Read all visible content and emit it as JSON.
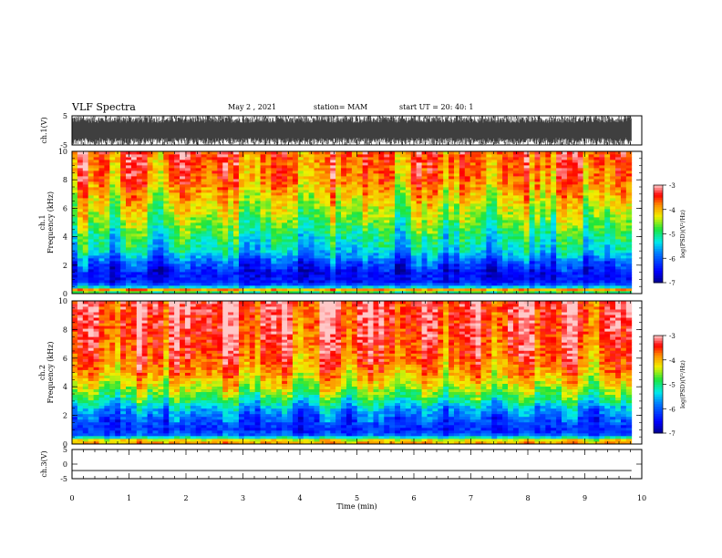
{
  "header": {
    "title": "VLF Spectra",
    "date": "May 2 , 2021",
    "station": "station= MAM",
    "start": "start UT = 20: 40: 1"
  },
  "chart_data": {
    "type": "heatmap",
    "x": {
      "label": "Time (min)",
      "range": [
        0,
        10
      ],
      "ticks": [
        "0",
        "1",
        "2",
        "3",
        "4",
        "5",
        "6",
        "7",
        "8",
        "9",
        "10"
      ]
    },
    "panels": [
      {
        "key": "waveform-ch1",
        "type": "line",
        "ylabel": "ch.1(V)",
        "ylim": [
          -5,
          5
        ],
        "yticks": [
          "5",
          "-5"
        ],
        "note": "dense noisy waveform saturating near +/-5 V",
        "data_end_min": 9.82
      },
      {
        "key": "spectrogram-ch1",
        "type": "heatmap",
        "ylabel_line1": "ch.1",
        "ylabel_line2": "Frequency (kHz)",
        "ylim": [
          0,
          10
        ],
        "yticks": [
          "0",
          "2",
          "4",
          "6",
          "8",
          "10"
        ],
        "data_end_min": 9.82,
        "profile_freq_khz": [
          0,
          0.3,
          0.5,
          0.8,
          1.5,
          2.2,
          3.0,
          4.0,
          5.0,
          6.0,
          7.0,
          8.0,
          10.0
        ],
        "profile_log_psd": [
          -5.3,
          -3.9,
          -5.6,
          -6.4,
          -6.5,
          -6.1,
          -5.4,
          -5.1,
          -4.7,
          -4.4,
          -4.1,
          -3.8,
          -3.6
        ],
        "colorbar": {
          "label": "log(PSD)(V²/Hz)",
          "range": [
            -7,
            -3
          ],
          "ticks": [
            "-3",
            "-4",
            "-5",
            "-6",
            "-7"
          ]
        }
      },
      {
        "key": "spectrogram-ch2",
        "type": "heatmap",
        "ylabel_line1": "ch.2",
        "ylabel_line2": "Frequency (kHz)",
        "ylim": [
          0,
          10
        ],
        "yticks": [
          "0",
          "2",
          "4",
          "6",
          "8",
          "10"
        ],
        "data_end_min": 9.82,
        "profile_freq_khz": [
          0,
          0.3,
          0.6,
          1.0,
          1.8,
          2.5,
          3.2,
          4.0,
          5.0,
          6.0,
          7.0,
          8.0,
          10.0
        ],
        "profile_log_psd": [
          -3.8,
          -4.3,
          -5.9,
          -6.3,
          -6.0,
          -5.6,
          -4.9,
          -4.4,
          -3.9,
          -3.6,
          -3.5,
          -3.4,
          -3.3
        ],
        "colorbar": {
          "label": "log(PSD)(V²/Hz)",
          "range": [
            -7,
            -3
          ],
          "ticks": [
            "-3",
            "-4",
            "-5",
            "-6",
            "-7"
          ]
        }
      },
      {
        "key": "waveform-ch3",
        "type": "line",
        "ylabel": "ch.3(V)",
        "ylim": [
          -5,
          5
        ],
        "yticks": [
          "5",
          "0",
          "-5"
        ],
        "constant_value": -2.2,
        "data_end_min": 9.82
      }
    ]
  }
}
